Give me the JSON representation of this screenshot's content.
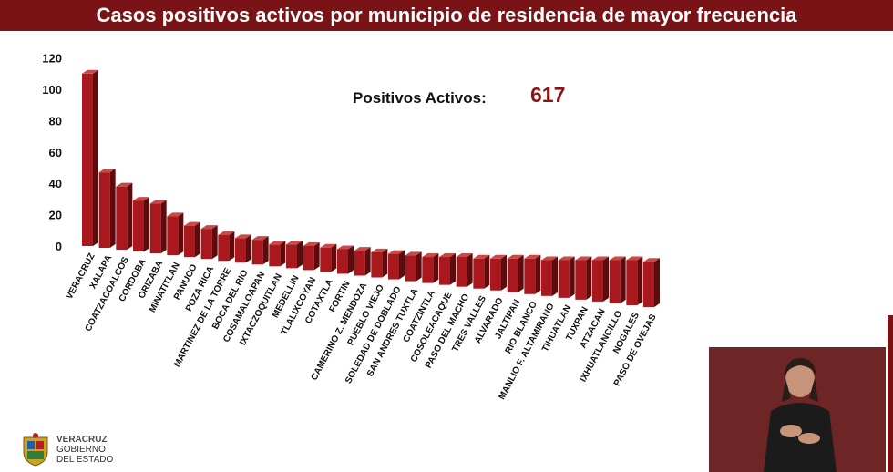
{
  "header": {
    "title": "Casos positivos activos por municipio de residencia de mayor frecuencia"
  },
  "kpi": {
    "label": "Positivos Activos:",
    "value": "617"
  },
  "logo": {
    "line1": "VERACRUZ",
    "line2": "GOBIERNO",
    "line3": "DEL ESTADO"
  },
  "colors": {
    "title_bar": "#7a1315",
    "bar_front": "#a8181c",
    "bar_top": "#c74a48",
    "bar_side": "#5e0b0d",
    "kpi_value": "#8b1417"
  },
  "chart_data": {
    "type": "bar",
    "title": "",
    "xlabel": "",
    "ylabel": "",
    "ylim": [
      0,
      120
    ],
    "yticks": [
      0,
      20,
      40,
      60,
      80,
      100,
      120
    ],
    "grid": false,
    "categories": [
      "VERACRUZ",
      "XALAPA",
      "COATZACOALCOS",
      "CORDOBA",
      "ORIZABA",
      "MINATITLAN",
      "PANUCO",
      "POZA RICA",
      "MARTINEZ DE LA TORRE",
      "BOCA DEL RIO",
      "COSAMALOAPAN",
      "IXTACZOQUITLAN",
      "MEDELLIN",
      "TLALIXCOYAN",
      "COTAXTLA",
      "FORTIN",
      "CAMERINO Z. MENDOZA",
      "PUEBLO VIEJO",
      "SOLEDAD DE DOBLADO",
      "SAN ANDRES TUXTLA",
      "COATZINTLA",
      "COSOLEACAQUE",
      "PASO DEL MACHO",
      "TRES VALLES",
      "ALVARADO",
      "JALTIPAN",
      "RIO BLANCO",
      "MANLIO F. ALTAMIRANO",
      "TIHUATLAN",
      "TUXPAN",
      "ATZACAN",
      "IXHUATLANCILLO",
      "NOGALES",
      "PASO DE OVEJAS"
    ],
    "values": [
      110,
      47,
      38,
      29,
      27,
      19,
      13,
      11,
      7,
      5,
      4,
      1,
      1,
      0,
      -1,
      -2,
      -3,
      -4,
      -5,
      -6,
      -7,
      -7,
      -7,
      -8,
      -8,
      -8,
      -8,
      -9,
      -9,
      -9,
      -9,
      -9,
      -9,
      -10
    ]
  }
}
